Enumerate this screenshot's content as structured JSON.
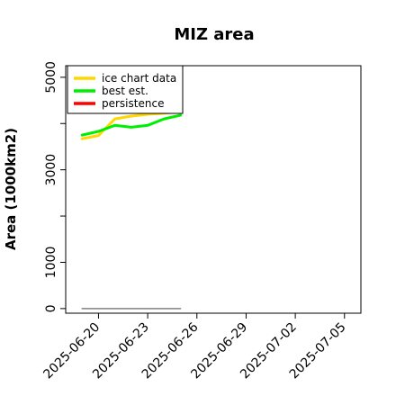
{
  "chart_data": {
    "type": "line",
    "title": "MIZ area",
    "xlabel": "",
    "ylabel": "Area (1000km2)",
    "xlim": [
      "2025-06-18",
      "2025-07-06"
    ],
    "ylim": [
      -100,
      5250
    ],
    "x_ticks": [
      "2025-06-20",
      "2025-06-23",
      "2025-06-26",
      "2025-06-29",
      "2025-07-02",
      "2025-07-05"
    ],
    "y_ticks": [
      0,
      1000,
      2000,
      3000,
      4000,
      5000
    ],
    "y_tick_labels": [
      "0",
      "1000",
      "",
      "3000",
      "",
      "5000"
    ],
    "grid": false,
    "legend_position": "top-left",
    "series": [
      {
        "name": "ice chart data",
        "color": "#FFD700",
        "x": [
          "2025-06-19",
          "2025-06-20",
          "2025-06-21",
          "2025-06-22",
          "2025-06-23",
          "2025-06-24",
          "2025-06-25"
        ],
        "values": [
          3670,
          3740,
          4100,
          4160,
          4200,
          4220,
          4260
        ]
      },
      {
        "name": "best est.",
        "color": "#00EE00",
        "x": [
          "2025-06-19",
          "2025-06-20",
          "2025-06-21",
          "2025-06-22",
          "2025-06-23",
          "2025-06-24",
          "2025-06-25"
        ],
        "values": [
          3750,
          3830,
          3960,
          3920,
          3960,
          4100,
          4180
        ]
      },
      {
        "name": "persistence",
        "color": "#FF0000",
        "x": [],
        "values": []
      },
      {
        "name": "",
        "color": "#808080",
        "x": [
          "2025-06-19",
          "2025-06-25"
        ],
        "values": [
          0,
          0
        ]
      }
    ]
  }
}
